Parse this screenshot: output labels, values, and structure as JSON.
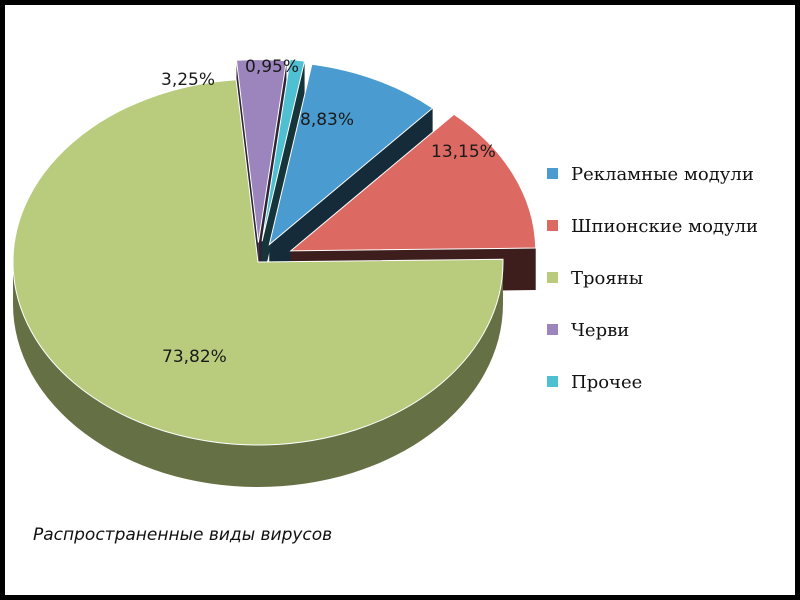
{
  "caption": "Распространенные виды вирусов",
  "chart_data": {
    "type": "pie",
    "title": "",
    "three_d": true,
    "exploded": true,
    "legend_position": "right",
    "slices": [
      {
        "label": "Рекламные модули",
        "value": 8.83,
        "display": "8,83%",
        "color": "#4a9bcf"
      },
      {
        "label": "Шпионские модули",
        "value": 13.15,
        "display": "13,15%",
        "color": "#dc6a63"
      },
      {
        "label": "Трояны",
        "value": 73.82,
        "display": "73,82%",
        "color": "#b9cc7d"
      },
      {
        "label": "Черви",
        "value": 3.25,
        "display": "3,25%",
        "color": "#9c85bd"
      },
      {
        "label": "Прочее",
        "value": 0.95,
        "display": "0,95%",
        "color": "#4fbfd2"
      }
    ]
  }
}
